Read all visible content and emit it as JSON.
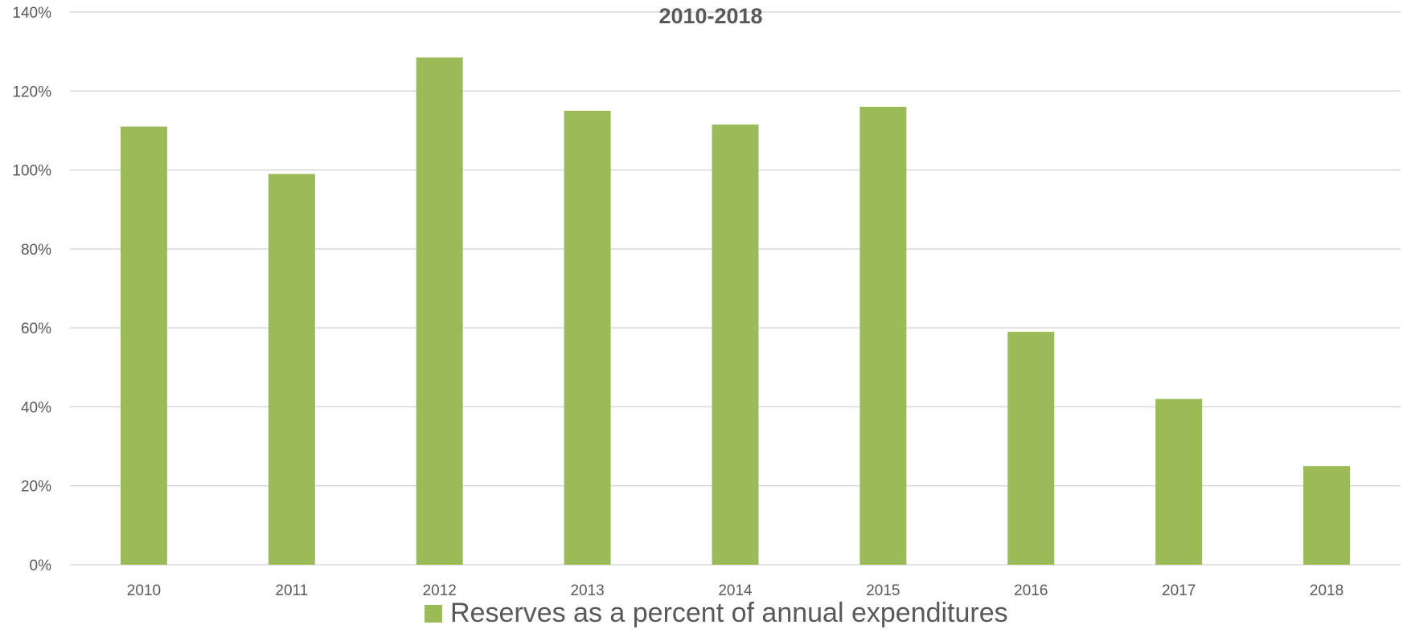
{
  "chart_data": {
    "type": "bar",
    "title": "2010-2018",
    "categories": [
      "2010",
      "2011",
      "2012",
      "2013",
      "2014",
      "2015",
      "2016",
      "2017",
      "2018"
    ],
    "series": [
      {
        "name": "Reserves as a percent of annual expenditures",
        "values": [
          111,
          99,
          128.5,
          115,
          111.5,
          116,
          59,
          42,
          25
        ],
        "color": "#9bbb59"
      }
    ],
    "ylim": [
      0,
      140
    ],
    "yticks": [
      "0%",
      "20%",
      "40%",
      "60%",
      "80%",
      "100%",
      "120%",
      "140%"
    ],
    "grid": true,
    "legend_position": "bottom"
  }
}
